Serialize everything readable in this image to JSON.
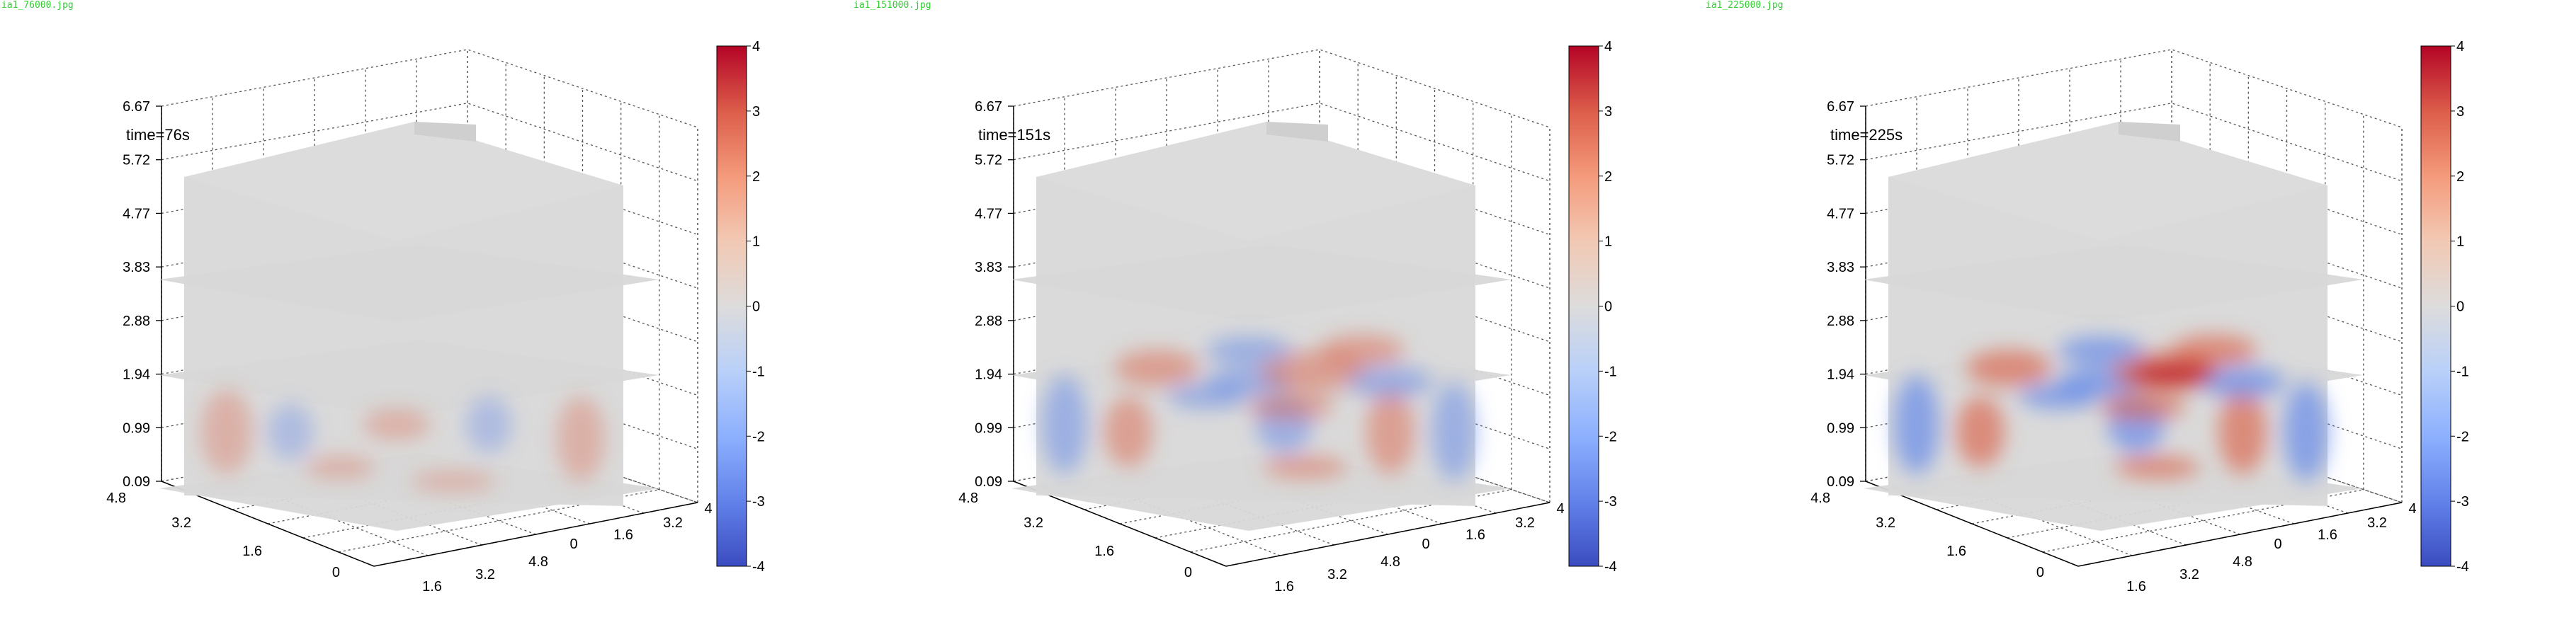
{
  "chart_data": [
    {
      "type": "heatmap",
      "filename": "ia1_76000.jpg",
      "annotation": "time=76s",
      "z_ticks": [
        "6.67",
        "5.72",
        "4.77",
        "3.83",
        "2.88",
        "1.94",
        "0.99",
        "0.09"
      ],
      "y_ticks_left": [
        "4.8",
        "3.2",
        "1.6",
        "0"
      ],
      "x_ticks_front": [
        "1.6",
        "3.2",
        "4.8"
      ],
      "x_ticks_right": [
        "0",
        "1.6",
        "3.2"
      ],
      "right_corner_tick": "4",
      "colorbar": {
        "ticks": [
          "4",
          "3",
          "2",
          "1",
          "0",
          "-1",
          "-2",
          "-3",
          "-4"
        ],
        "range": [
          -4,
          4
        ],
        "colormap": "coolwarm"
      },
      "intensity": 0.35,
      "active_slice": "bottom"
    },
    {
      "type": "heatmap",
      "filename": "ia1_151000.jpg",
      "annotation": "time=151s",
      "z_ticks": [
        "6.67",
        "5.72",
        "4.77",
        "3.83",
        "2.88",
        "1.94",
        "0.99",
        "0.09"
      ],
      "y_ticks_left": [
        "4.8",
        "3.2",
        "1.6",
        "0"
      ],
      "x_ticks_front": [
        "1.6",
        "3.2",
        "4.8"
      ],
      "x_ticks_right": [
        "0",
        "1.6",
        "3.2"
      ],
      "right_corner_tick": "4",
      "colorbar": {
        "ticks": [
          "4",
          "3",
          "2",
          "1",
          "0",
          "-1",
          "-2",
          "-3",
          "-4"
        ],
        "range": [
          -4,
          4
        ],
        "colormap": "coolwarm"
      },
      "intensity": 0.6,
      "active_slice": "middle"
    },
    {
      "type": "heatmap",
      "filename": "ia1_225000.jpg",
      "annotation": "time=225s",
      "z_ticks": [
        "6.67",
        "5.72",
        "4.77",
        "3.83",
        "2.88",
        "1.94",
        "0.99",
        "0.09"
      ],
      "y_ticks_left": [
        "4.8",
        "3.2",
        "1.6",
        "0"
      ],
      "x_ticks_front": [
        "1.6",
        "3.2",
        "4.8"
      ],
      "x_ticks_right": [
        "0",
        "1.6",
        "3.2"
      ],
      "right_corner_tick": "4",
      "colorbar": {
        "ticks": [
          "4",
          "3",
          "2",
          "1",
          "0",
          "-1",
          "-2",
          "-3",
          "-4"
        ],
        "range": [
          -4,
          4
        ],
        "colormap": "coolwarm"
      },
      "intensity": 0.9,
      "active_slice": "middle"
    }
  ]
}
